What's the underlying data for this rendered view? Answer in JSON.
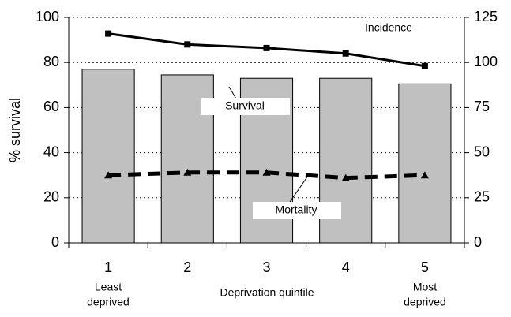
{
  "chart_data": {
    "type": "bar",
    "y_label": "% survival",
    "x_label": "Deprivation quintile",
    "categories": [
      "1",
      "2",
      "3",
      "4",
      "5"
    ],
    "x_end_labels": [
      [
        "Least",
        "deprived"
      ],
      [
        "Most",
        "deprived"
      ]
    ],
    "ylim": [
      0,
      100
    ],
    "yticks": [
      0,
      20,
      40,
      60,
      80,
      100
    ],
    "y2lim": [
      0,
      125
    ],
    "y2ticks": [
      0,
      25,
      50,
      75,
      100,
      125
    ],
    "grid": true,
    "series": [
      {
        "name": "Survival",
        "type": "bar",
        "color": "#c0c0c0",
        "values": [
          77,
          74.5,
          73,
          73,
          70.5
        ]
      },
      {
        "name": "Incidence",
        "type": "line",
        "axis": "y2",
        "color": "#000000",
        "dashed": false,
        "marker": "square",
        "values": [
          116,
          110,
          108,
          105,
          98
        ]
      },
      {
        "name": "Mortality",
        "type": "line",
        "axis": "y2",
        "color": "#000000",
        "dashed": true,
        "marker": "triangle",
        "values": [
          37.5,
          39,
          39,
          36,
          37.5
        ]
      }
    ]
  }
}
